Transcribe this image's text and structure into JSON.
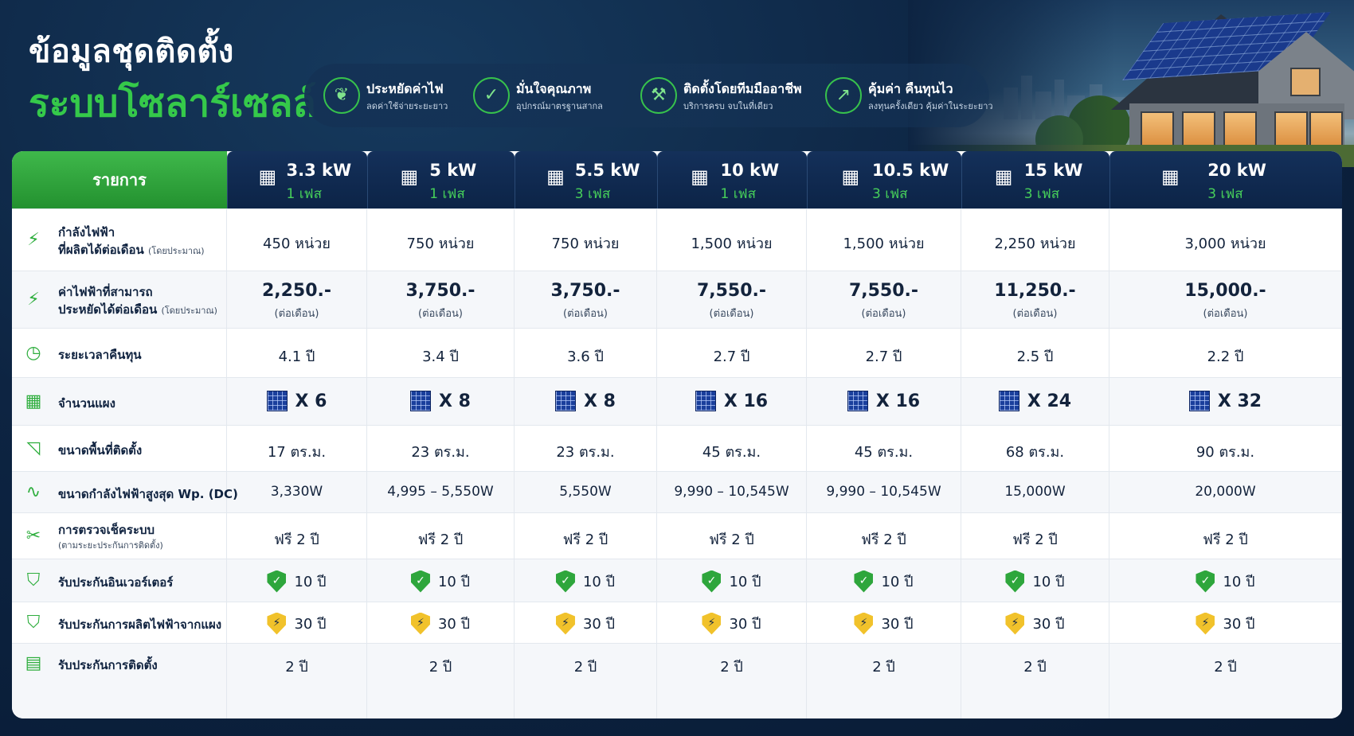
{
  "header": {
    "title_line1": "ข้อมูลชุดติดตั้ง",
    "title_line2": "ระบบโซลาร์เซลล์"
  },
  "benefits": [
    {
      "icon": "piggy-leaf-icon",
      "title": "ประหยัดค่าไฟ",
      "subtitle": "ลดค่าใช้จ่ายระยะยาว"
    },
    {
      "icon": "shield-check-icon",
      "title": "มั่นใจคุณภาพ",
      "subtitle": "อุปกรณ์มาตรฐานสากล"
    },
    {
      "icon": "wrench-icon",
      "title": "ติดตั้งโดยทีมมืออาชีพ",
      "subtitle": "บริการครบ จบในที่เดียว"
    },
    {
      "icon": "growth-chart-icon",
      "title": "คุ้มค่า คืนทุนไว",
      "subtitle": "ลงทุนครั้งเดียว คุ้มค่าในระยะยาว"
    }
  ],
  "table": {
    "first_header": "รายการ",
    "columns": [
      {
        "kw": "3.3 kW",
        "phase": "1 เฟส"
      },
      {
        "kw": "5 kW",
        "phase": "1 เฟส"
      },
      {
        "kw": "5.5 kW",
        "phase": "3 เฟส"
      },
      {
        "kw": "10 kW",
        "phase": "1 เฟส"
      },
      {
        "kw": "10.5 kW",
        "phase": "3 เฟส"
      },
      {
        "kw": "15 kW",
        "phase": "3 เฟส"
      },
      {
        "kw": "20 kW",
        "phase": "3 เฟส"
      }
    ],
    "rows": {
      "production": {
        "icon": "lightning-icon",
        "label_line1": "กำลังไฟฟ้า",
        "label_line2": "ที่ผลิตได้ต่อเดือน",
        "label_note": "(โดยประมาณ)",
        "values": [
          "450 หน่วย",
          "750 หน่วย",
          "750 หน่วย",
          "1,500 หน่วย",
          "1,500 หน่วย",
          "2,250 หน่วย",
          "3,000 หน่วย"
        ]
      },
      "savings": {
        "icon": "lightning-icon",
        "label_line1": "ค่าไฟฟ้าที่สามารถ",
        "label_line2": "ประหยัดได้ต่อเดือน",
        "label_note": "(โดยประมาณ)",
        "values": [
          "2,250.-",
          "3,750.-",
          "3,750.-",
          "7,550.-",
          "7,550.-",
          "11,250.-",
          "15,000.-"
        ],
        "unit": "(ต่อเดือน)"
      },
      "payback": {
        "icon": "clock-icon",
        "label": "ระยะเวลาคืนทุน",
        "values": [
          "4.1 ปี",
          "3.4 ปี",
          "3.6 ปี",
          "2.7 ปี",
          "2.7 ปี",
          "2.5 ปี",
          "2.2 ปี"
        ]
      },
      "panels": {
        "icon": "solar-panel-icon",
        "label": "จำนวนแผง",
        "values": [
          "X 6",
          "X 8",
          "X 8",
          "X 16",
          "X 16",
          "X 24",
          "X 32"
        ]
      },
      "area": {
        "icon": "area-icon",
        "label": "ขนาดพื้นที่ติดตั้ง",
        "values": [
          "17 ตร.ม.",
          "23 ตร.ม.",
          "23 ตร.ม.",
          "45 ตร.ม.",
          "45 ตร.ม.",
          "68 ตร.ม.",
          "90 ตร.ม."
        ]
      },
      "peak": {
        "icon": "pulse-icon",
        "label": "ขนาดกำลังไฟฟ้าสูงสุด Wp. (DC)",
        "values": [
          "3,330W",
          "4,995 – 5,550W",
          "5,550W",
          "9,990 – 10,545W",
          "9,990 – 10,545W",
          "15,000W",
          "20,000W"
        ]
      },
      "inspection": {
        "icon": "tools-icon",
        "label": "การตรวจเช็คระบบ",
        "label_sub": "(ตามระยะประกันการติดตั้ง)",
        "values": [
          "ฟรี 2 ปี",
          "ฟรี 2 ปี",
          "ฟรี 2 ปี",
          "ฟรี 2 ปี",
          "ฟรี 2 ปี",
          "ฟรี 2 ปี",
          "ฟรี 2 ปี"
        ]
      },
      "inverter": {
        "icon": "shield-check-icon",
        "label": "รับประกันอินเวอร์เตอร์",
        "values": [
          "10 ปี",
          "10 ปี",
          "10 ปี",
          "10 ปี",
          "10 ปี",
          "10 ปี",
          "10 ปี"
        ]
      },
      "panel_output": {
        "icon": "shield-check-icon",
        "label": "รับประกันการผลิตไฟฟ้าจากแผง",
        "values": [
          "30 ปี",
          "30 ปี",
          "30 ปี",
          "30 ปี",
          "30 ปี",
          "30 ปี",
          "30 ปี"
        ]
      },
      "installation": {
        "icon": "document-check-icon",
        "label": "รับประกันการติดตั้ง",
        "values": [
          "2 ปี",
          "2 ปี",
          "2 ปี",
          "2 ปี",
          "2 ปี",
          "2 ปี",
          "2 ปี"
        ]
      }
    }
  },
  "colors": {
    "background": "#0b1f3a",
    "accent_green": "#35c94a",
    "header_navy": "#0c2447",
    "shield_yellow": "#f1c22b"
  }
}
